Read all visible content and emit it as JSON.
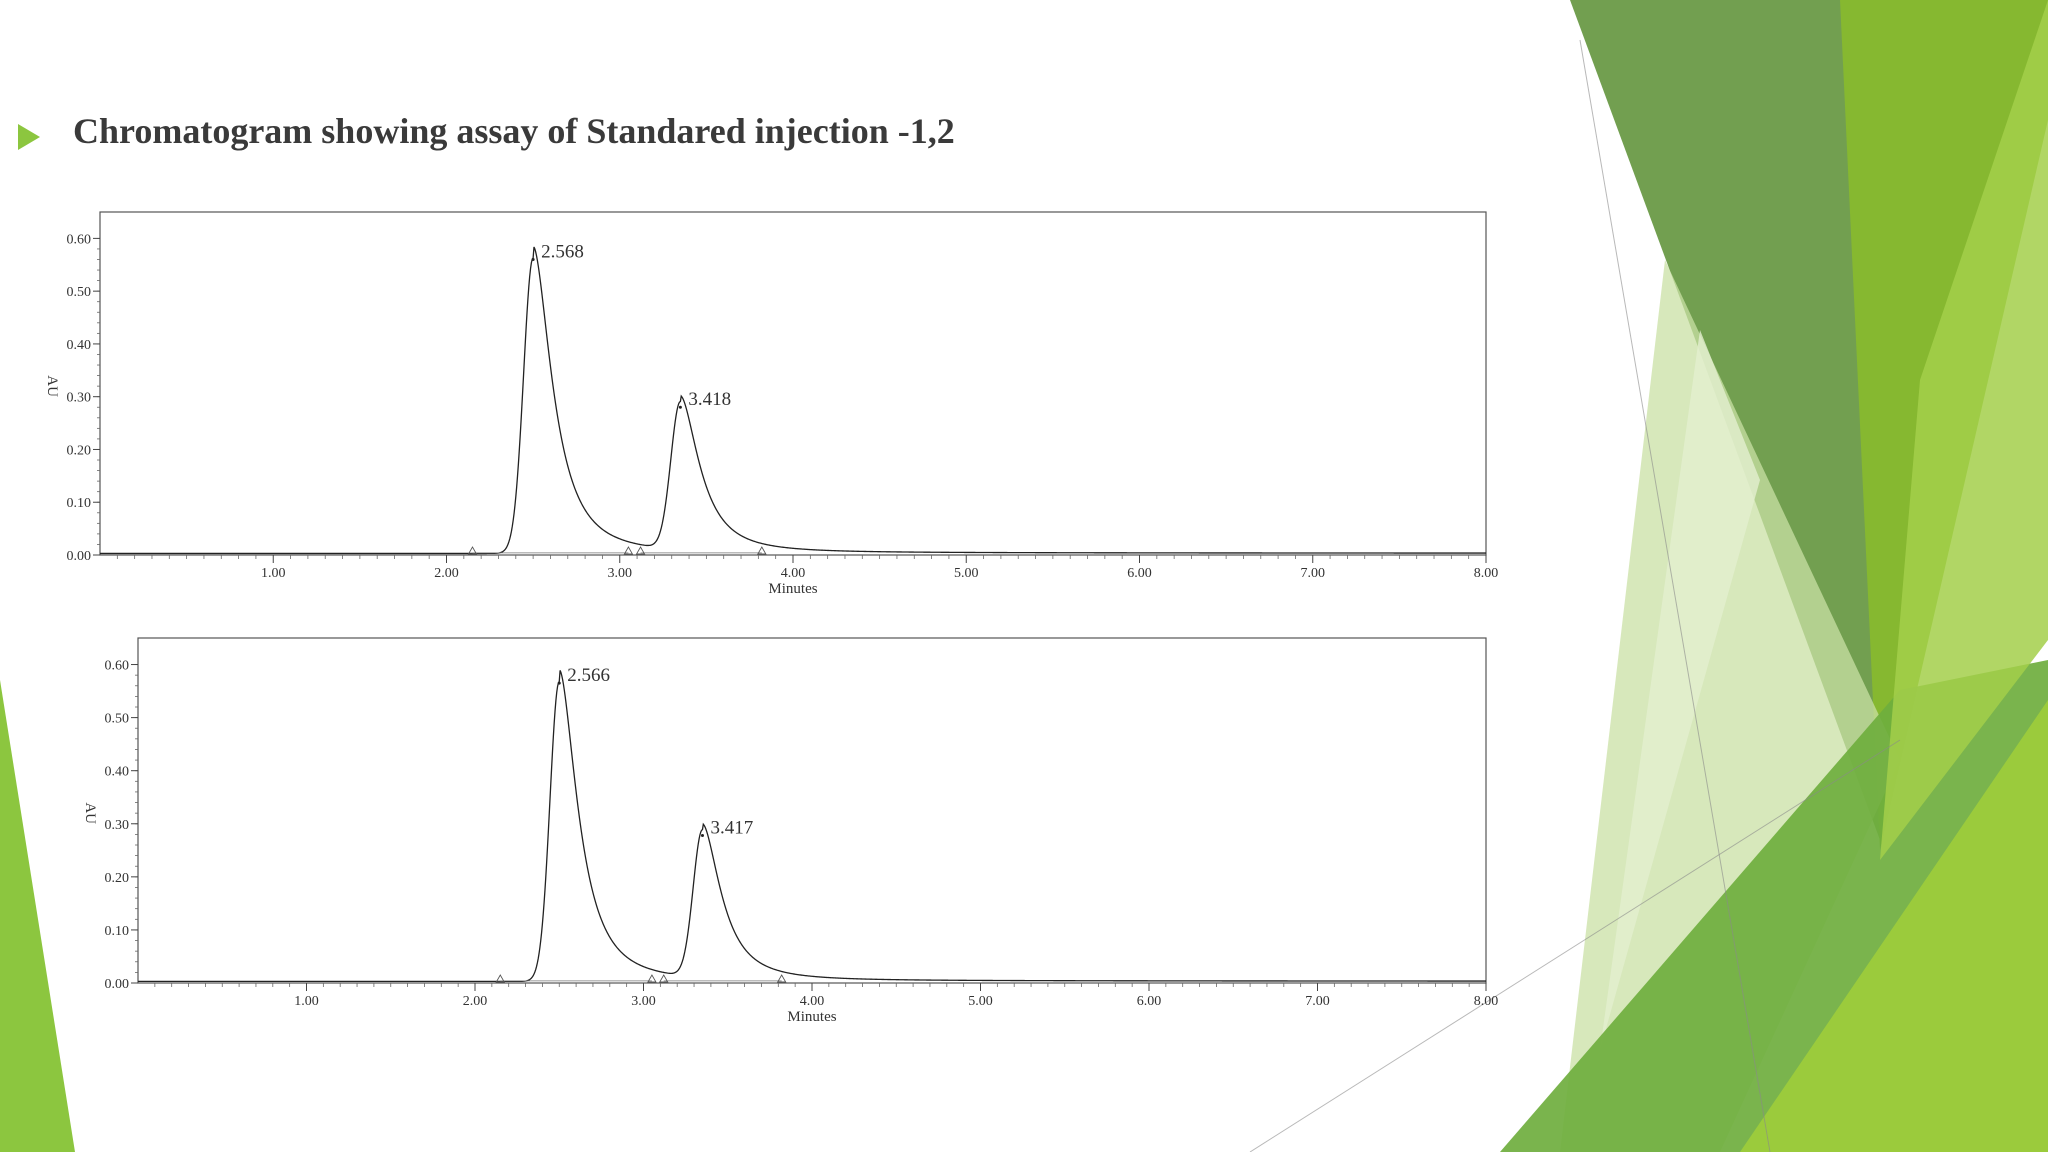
{
  "slide": {
    "title": "Chromatogram showing assay of Standared injection -1,2",
    "bullet_icon": "triangle-bullet-icon",
    "accent_colors": [
      "#8cc63f",
      "#6a9a47",
      "#4f8a20",
      "#9bcb3c",
      "#c9e0a4"
    ]
  },
  "chart_data": [
    {
      "type": "line",
      "title": "",
      "xlabel": "Minutes",
      "ylabel": "AU",
      "xlim": [
        0,
        8
      ],
      "ylim": [
        0,
        0.65
      ],
      "xticks": [
        "1.00",
        "2.00",
        "3.00",
        "4.00",
        "5.00",
        "6.00",
        "7.00",
        "8.00"
      ],
      "yticks": [
        "0.00",
        "0.10",
        "0.20",
        "0.30",
        "0.40",
        "0.50",
        "0.60"
      ],
      "grid": false,
      "peaks": [
        {
          "rt": 2.568,
          "label": "2.568",
          "height": 0.56,
          "apex": 2.5
        },
        {
          "rt": 3.418,
          "label": "3.418",
          "height": 0.28,
          "apex": 3.35
        }
      ],
      "baseline_markers": [
        2.15,
        3.05,
        3.12,
        3.82
      ]
    },
    {
      "type": "line",
      "title": "",
      "xlabel": "Minutes",
      "ylabel": "AU",
      "xlim": [
        0,
        8
      ],
      "ylim": [
        0,
        0.65
      ],
      "xticks": [
        "1.00",
        "2.00",
        "3.00",
        "4.00",
        "5.00",
        "6.00",
        "7.00",
        "8.00"
      ],
      "yticks": [
        "0.00",
        "0.10",
        "0.20",
        "0.30",
        "0.40",
        "0.50",
        "0.60"
      ],
      "grid": false,
      "peaks": [
        {
          "rt": 2.566,
          "label": "2.566",
          "height": 0.565,
          "apex": 2.5
        },
        {
          "rt": 3.417,
          "label": "3.417",
          "height": 0.278,
          "apex": 3.35
        }
      ],
      "baseline_markers": [
        2.15,
        3.05,
        3.12,
        3.82
      ]
    }
  ]
}
